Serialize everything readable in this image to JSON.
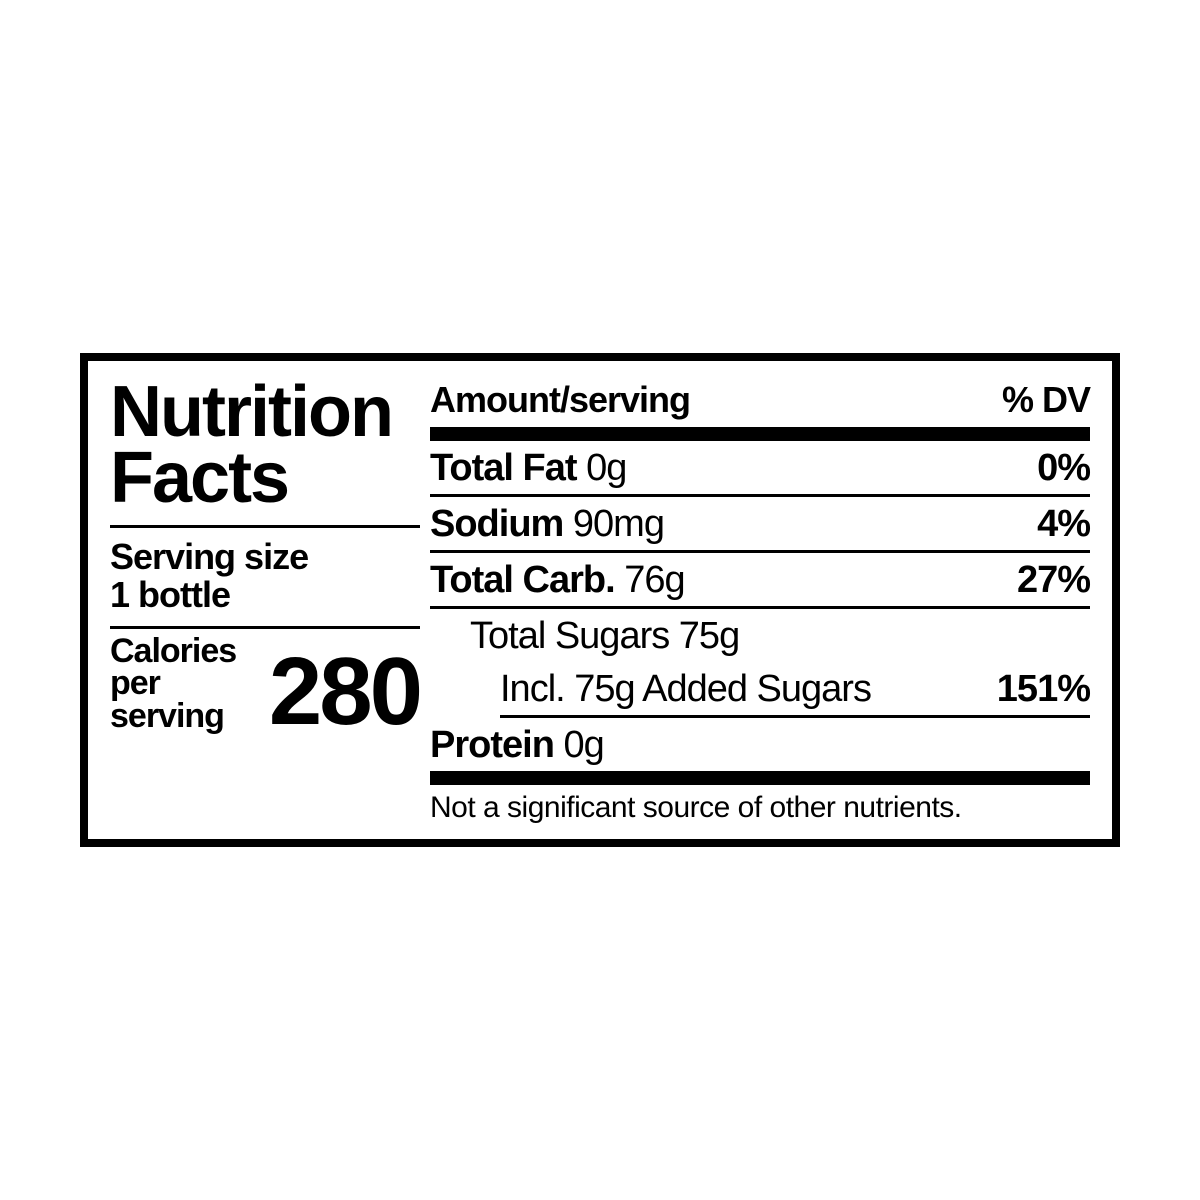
{
  "title_line1": "Nutrition",
  "title_line2": "Facts",
  "serving_label": "Serving size",
  "serving_value": "1 bottle",
  "calories_label_line1": "Calories",
  "calories_label_line2": "per serving",
  "calories_value": "280",
  "header_amount": "Amount/serving",
  "header_dv": "% DV",
  "rows": {
    "fat": {
      "label": "Total Fat",
      "amount": "0g",
      "dv": "0%"
    },
    "sodium": {
      "label": "Sodium",
      "amount": "90mg",
      "dv": "4%"
    },
    "carb": {
      "label": "Total Carb.",
      "amount": "76g",
      "dv": "27%"
    },
    "sugars": {
      "label": "Total Sugars",
      "amount": "75g"
    },
    "added": {
      "label": "Incl. 75g Added Sugars",
      "dv": "151%"
    },
    "protein": {
      "label": "Protein",
      "amount": "0g"
    }
  },
  "footnote": "Not a significant source of other nutrients.",
  "colors": {
    "text": "#000000",
    "background": "#ffffff",
    "border": "#000000"
  }
}
